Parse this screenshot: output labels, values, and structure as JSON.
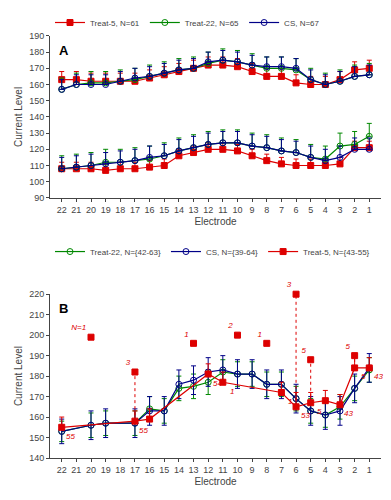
{
  "chart_data": [
    {
      "type": "line",
      "title": "A",
      "xlabel": "Electrode",
      "ylabel": "Current Level",
      "categories": [
        22,
        21,
        20,
        19,
        18,
        17,
        16,
        15,
        14,
        13,
        12,
        11,
        10,
        9,
        8,
        7,
        6,
        5,
        4,
        3,
        2,
        1
      ],
      "ylim": [
        90,
        190
      ],
      "yticks": [
        90,
        100,
        110,
        120,
        130,
        140,
        150,
        160,
        170,
        180,
        190
      ],
      "grid": false,
      "legend": "top",
      "series": [
        {
          "name": "Treat-5, N=61",
          "color": "#dd0000",
          "marker": "square",
          "values": [
            163,
            163,
            162,
            162,
            162,
            162,
            164,
            166,
            168,
            170,
            172,
            172,
            171,
            168,
            165,
            165,
            161,
            160,
            160,
            163,
            169,
            170
          ],
          "error_plus": [
            5,
            5,
            5,
            5,
            5,
            5,
            5,
            5,
            5,
            5,
            5,
            5,
            5,
            5,
            5,
            5,
            5,
            5,
            5,
            5,
            5,
            5
          ]
        },
        {
          "name": "Treat-22, N=65",
          "color": "#008800",
          "marker": "circle-open",
          "values": [
            157,
            160,
            161,
            161,
            162,
            163,
            165,
            167,
            169,
            170,
            173,
            175,
            174,
            172,
            170,
            170,
            169,
            163,
            160,
            162,
            165,
            166
          ],
          "error_plus": [
            7,
            7,
            7,
            7,
            7,
            7,
            7,
            7,
            7,
            7,
            7,
            7,
            7,
            7,
            7,
            7,
            7,
            7,
            7,
            7,
            7,
            7
          ]
        },
        {
          "name": "CS, N=67",
          "color": "#000088",
          "marker": "circle-open",
          "values": [
            157,
            160,
            160,
            160,
            162,
            164,
            165,
            167,
            169,
            170,
            174,
            175,
            174,
            172,
            171,
            171,
            170,
            163,
            160,
            162,
            165,
            166
          ],
          "error_plus": [
            6,
            6,
            6,
            6,
            6,
            6,
            6,
            6,
            6,
            6,
            6,
            6,
            6,
            6,
            6,
            6,
            6,
            6,
            6,
            6,
            6,
            6
          ]
        },
        {
          "color": "#dd0000",
          "marker": "square",
          "values": [
            108,
            108,
            108,
            107,
            108,
            108,
            109,
            110,
            116,
            118,
            120,
            120,
            119,
            116,
            113,
            111,
            110,
            110,
            110,
            111,
            121,
            121
          ],
          "error_plus": [
            4,
            4,
            4,
            4,
            4,
            4,
            4,
            4,
            4,
            4,
            4,
            4,
            4,
            4,
            4,
            4,
            4,
            4,
            4,
            4,
            4,
            4
          ]
        },
        {
          "color": "#008800",
          "marker": "circle-open",
          "values": [
            108,
            109,
            110,
            112,
            112,
            113,
            114,
            116,
            119,
            121,
            123,
            124,
            124,
            122,
            121,
            119,
            118,
            115,
            114,
            122,
            123,
            128
          ],
          "error_plus": [
            8,
            8,
            8,
            8,
            8,
            8,
            8,
            8,
            8,
            8,
            8,
            8,
            8,
            8,
            8,
            8,
            8,
            8,
            8,
            8,
            8,
            8
          ]
        },
        {
          "color": "#000088",
          "marker": "circle-open",
          "values": [
            108,
            109,
            110,
            111,
            112,
            113,
            115,
            116,
            119,
            121,
            123,
            124,
            124,
            122,
            121,
            119,
            118,
            115,
            113,
            115,
            120,
            120
          ],
          "error_plus": [
            7,
            7,
            7,
            7,
            7,
            7,
            7,
            7,
            7,
            7,
            7,
            7,
            7,
            7,
            7,
            7,
            7,
            7,
            7,
            7,
            7,
            7
          ]
        }
      ]
    },
    {
      "type": "line",
      "title": "B",
      "xlabel": "Electrode",
      "ylabel": "Current Level",
      "categories": [
        22,
        21,
        20,
        19,
        18,
        17,
        16,
        15,
        14,
        13,
        12,
        11,
        10,
        9,
        8,
        7,
        6,
        5,
        4,
        3,
        2,
        1
      ],
      "ylim": [
        140,
        220
      ],
      "yticks": [
        140,
        150,
        160,
        170,
        180,
        190,
        200,
        210,
        220
      ],
      "grid": false,
      "legend": "top",
      "series": [
        {
          "name": "Treat-22, N={42-63}",
          "color": "#008800",
          "marker": "circle-open",
          "x": [
            22,
            20,
            19,
            17,
            16,
            15,
            14,
            13,
            12,
            11,
            10,
            9,
            8,
            7,
            6,
            5,
            4,
            3,
            2,
            1
          ],
          "values": [
            153,
            156,
            157,
            157,
            164,
            163,
            174,
            175,
            177,
            182,
            181,
            181,
            176,
            176,
            169,
            163,
            161,
            165,
            174,
            183
          ],
          "error": [
            5,
            6,
            6,
            6,
            6,
            6,
            6,
            6,
            6,
            6,
            6,
            6,
            6,
            6,
            6,
            6,
            6,
            6,
            6,
            6
          ]
        },
        {
          "name": "CS, N={39-64}",
          "color": "#000088",
          "marker": "circle-open",
          "x": [
            22,
            20,
            19,
            17,
            16,
            15,
            14,
            13,
            12,
            11,
            10,
            9,
            8,
            7,
            6,
            5,
            4,
            3,
            2,
            1
          ],
          "values": [
            153,
            156,
            157,
            157,
            163,
            163,
            176,
            178,
            182,
            183,
            181,
            181,
            176,
            176,
            169,
            163,
            161,
            163,
            174,
            184
          ],
          "error": [
            6,
            7,
            7,
            7,
            7,
            7,
            7,
            7,
            7,
            7,
            7,
            7,
            7,
            7,
            7,
            7,
            7,
            7,
            7,
            7
          ]
        },
        {
          "name": "Treat-5, N={43-55}",
          "color": "#dd0000",
          "marker": "square",
          "x": [
            22,
            17,
            16,
            12,
            11,
            7,
            6,
            5,
            4,
            3,
            2,
            1
          ],
          "values": [
            155,
            158,
            159,
            181,
            177,
            172,
            165,
            167,
            168,
            166,
            184,
            184
          ],
          "error_plus": [
            5,
            5,
            5,
            5,
            5,
            5,
            7,
            5,
            5,
            5,
            5,
            5
          ]
        },
        {
          "type": "scatter",
          "color": "#dd0000",
          "marker": "square",
          "line_style": "dotted",
          "x": [
            20,
            17,
            13,
            10,
            8,
            6,
            5,
            2
          ],
          "values": [
            199,
            182,
            196,
            200,
            196,
            220,
            188,
            190
          ],
          "labels": [
            "N=1",
            "3",
            "1",
            "2",
            "1",
            "3",
            "5",
            "5"
          ],
          "bar_bottom": [
            null,
            158,
            null,
            null,
            null,
            165,
            167,
            184
          ]
        }
      ],
      "annotations": [
        {
          "x": 22,
          "y": 155,
          "text": "55",
          "color": "#dd0000"
        },
        {
          "x": 17,
          "y": 158,
          "text": "55",
          "color": "#dd0000"
        },
        {
          "x": 12,
          "y": 181,
          "text": "54",
          "color": "#dd0000"
        },
        {
          "x": 11,
          "y": 177,
          "text": "1",
          "color": "#dd0000"
        },
        {
          "x": 7,
          "y": 172,
          "text": "1",
          "color": "#dd0000"
        },
        {
          "x": 6,
          "y": 165,
          "text": "53",
          "color": "#dd0000"
        },
        {
          "x": 5,
          "y": 167,
          "text": "5",
          "color": "#dd0000"
        },
        {
          "x": 3,
          "y": 166,
          "text": "43",
          "color": "#dd0000"
        },
        {
          "x": 2,
          "y": 184,
          "text": "5",
          "color": "#dd0000"
        },
        {
          "x": 1,
          "y": 184,
          "text": "43",
          "color": "#dd0000"
        }
      ]
    }
  ]
}
